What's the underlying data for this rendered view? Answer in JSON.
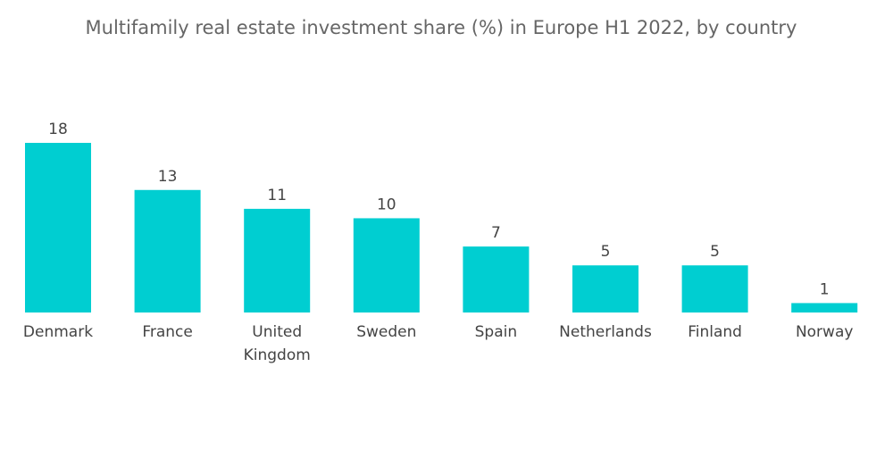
{
  "chart_data": {
    "type": "bar",
    "title": "Multifamily real estate investment share (%) in Europe H1 2022, by country",
    "categories": [
      [
        "Denmark"
      ],
      [
        "France"
      ],
      [
        "United",
        "Kingdom"
      ],
      [
        "Sweden"
      ],
      [
        "Spain"
      ],
      [
        "Netherlands"
      ],
      [
        "Finland"
      ],
      [
        "Norway"
      ]
    ],
    "values": [
      18,
      13,
      11,
      10,
      7,
      5,
      5,
      1
    ],
    "xlabel": "",
    "ylabel": "",
    "ylim": [
      0,
      18
    ],
    "grid": false,
    "data_labels": true,
    "bar_color": "#00CED1"
  }
}
